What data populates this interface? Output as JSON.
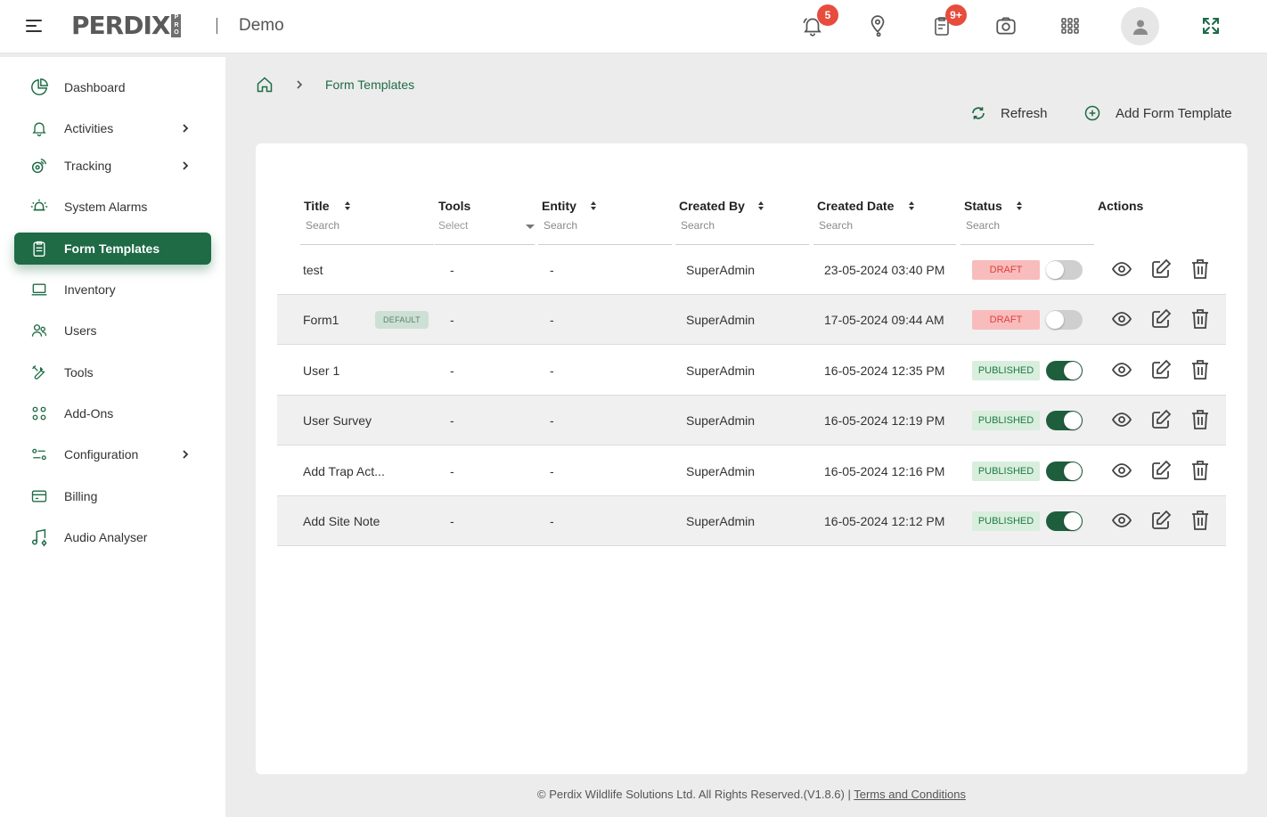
{
  "header": {
    "logo_text": "PERDIX",
    "logo_sub": "PRO",
    "org_name": "Demo",
    "notifications_badge": "5",
    "forms_badge": "9+",
    "icons": [
      "menu-icon",
      "bell-icon",
      "map-pin-icon",
      "clipboard-icon",
      "camera-icon",
      "grid-icon",
      "user-icon",
      "fullscreen-icon"
    ]
  },
  "sidebar": {
    "items": [
      {
        "label": "Dashboard",
        "icon": "dashboard-icon"
      },
      {
        "label": "Activities",
        "icon": "bell-icon",
        "has_children": true
      },
      {
        "label": "Tracking",
        "icon": "tracking-icon",
        "has_children": true
      },
      {
        "label": "System Alarms",
        "icon": "alarm-icon"
      },
      {
        "label": "Form Templates",
        "icon": "form-icon",
        "active": true
      },
      {
        "label": "Inventory",
        "icon": "laptop-icon"
      },
      {
        "label": "Users",
        "icon": "users-icon"
      },
      {
        "label": "Tools",
        "icon": "tools-icon"
      },
      {
        "label": "Add-Ons",
        "icon": "addons-icon"
      },
      {
        "label": "Configuration",
        "icon": "config-icon",
        "has_children": true
      },
      {
        "label": "Billing",
        "icon": "billing-icon"
      },
      {
        "label": "Audio Analyser",
        "icon": "audio-icon"
      }
    ]
  },
  "breadcrumb": {
    "current": "Form Templates"
  },
  "actions": {
    "refresh": "Refresh",
    "add": "Add Form Template"
  },
  "table": {
    "columns": [
      {
        "label": "Title",
        "placeholder": "Search"
      },
      {
        "label": "Tools",
        "placeholder": "Select"
      },
      {
        "label": "Entity",
        "placeholder": "Search"
      },
      {
        "label": "Created By",
        "placeholder": "Search"
      },
      {
        "label": "Created Date",
        "placeholder": "Search"
      },
      {
        "label": "Status",
        "placeholder": "Search"
      },
      {
        "label": "Actions"
      }
    ],
    "rows": [
      {
        "title": "test",
        "tools": "-",
        "entity": "-",
        "created_by": "SuperAdmin",
        "created_date": "23-05-2024 03:40 PM",
        "status": "DRAFT",
        "enabled": false
      },
      {
        "title": "Form1",
        "default_label": "DEFAULT",
        "tools": "-",
        "entity": "-",
        "created_by": "SuperAdmin",
        "created_date": "17-05-2024 09:44 AM",
        "status": "DRAFT",
        "enabled": false
      },
      {
        "title": "User 1",
        "tools": "-",
        "entity": "-",
        "created_by": "SuperAdmin",
        "created_date": "16-05-2024 12:35 PM",
        "status": "PUBLISHED",
        "enabled": true
      },
      {
        "title": "User Survey",
        "tools": "-",
        "entity": "-",
        "created_by": "SuperAdmin",
        "created_date": "16-05-2024 12:19 PM",
        "status": "PUBLISHED",
        "enabled": true
      },
      {
        "title": "Add Trap Act...",
        "tools": "-",
        "entity": "-",
        "created_by": "SuperAdmin",
        "created_date": "16-05-2024 12:16 PM",
        "status": "PUBLISHED",
        "enabled": true
      },
      {
        "title": "Add Site Note",
        "tools": "-",
        "entity": "-",
        "created_by": "SuperAdmin",
        "created_date": "16-05-2024 12:12 PM",
        "status": "PUBLISHED",
        "enabled": true
      }
    ]
  },
  "footer": {
    "copyright": "© Perdix Wildlife Solutions Ltd. All Rights Reserved.(V1.8.6) | ",
    "terms": "Terms and Conditions"
  },
  "colors": {
    "brand_green": "#1e6b45",
    "draft": "#e0403f",
    "published": "#1e7a45",
    "badge": "#e74c3c"
  }
}
